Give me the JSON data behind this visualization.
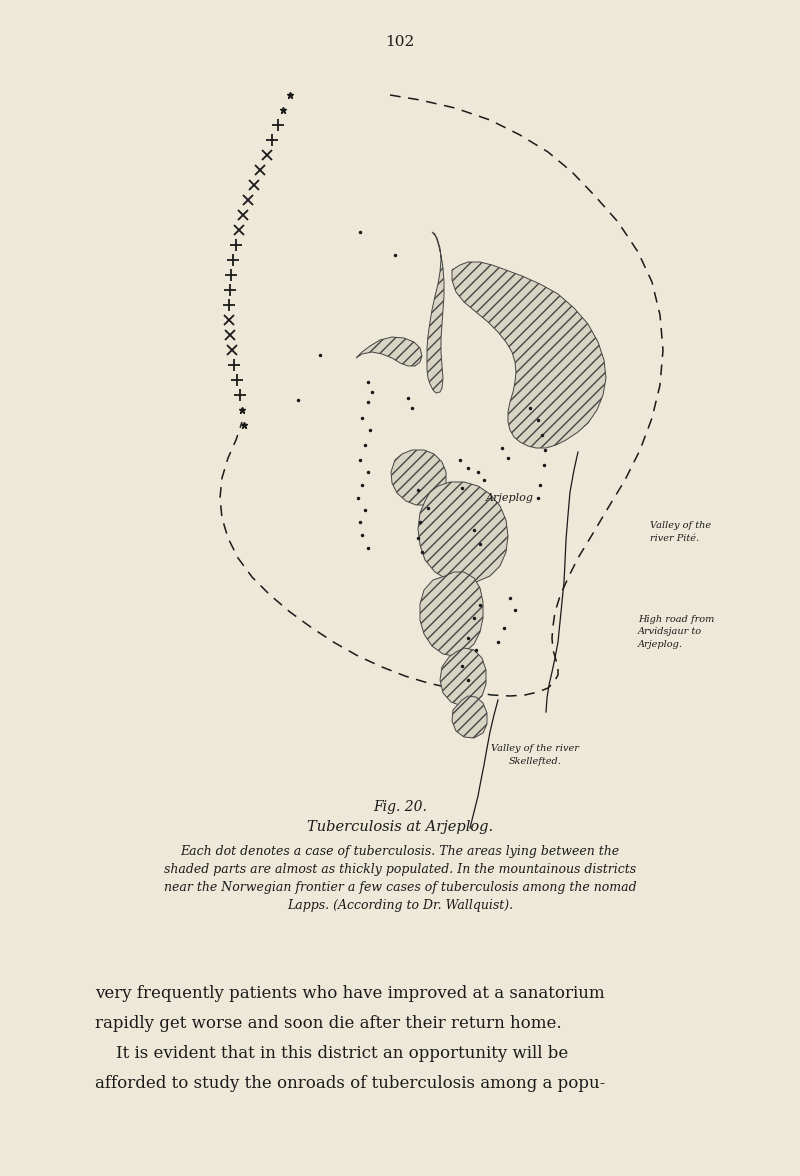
{
  "page_number": "102",
  "background_color": "#ede8d8",
  "fig_label": "Fig. 20.",
  "title": "Tuberculosis at Arjeplog.",
  "caption_line1": "Each dot denotes a case of tuberculosis. The areas lying between the",
  "caption_line2": "shaded parts are almost as thickly populated. In the mountainous districts",
  "caption_line3": "near the Norwegian frontier a few cases of tuberculosis among the nomad",
  "caption_line4": "Lapps. (According to Dr. Wallquist).",
  "body_text_line1": "very frequently patients who have improved at a sanatorium",
  "body_text_line2": "rapidly get worse and soon die after their return home.",
  "body_text_line3": "    It is evident that in this district an opportunity will be",
  "body_text_line4": "afforded to study the onroads of tuberculosis among a popu-",
  "label_arjeplog": "Arjeplog",
  "label_valley_pite": "Valley of the\nriver Pité.",
  "label_high_road": "High road from\nArvidsjaur to\nArjeplog.",
  "label_valley_skellefte": "Valley of the river\nSkellefted.",
  "ink_color": "#1a1a1a",
  "hatch_color": "#444444",
  "hatch_face": "#d8d4c4"
}
